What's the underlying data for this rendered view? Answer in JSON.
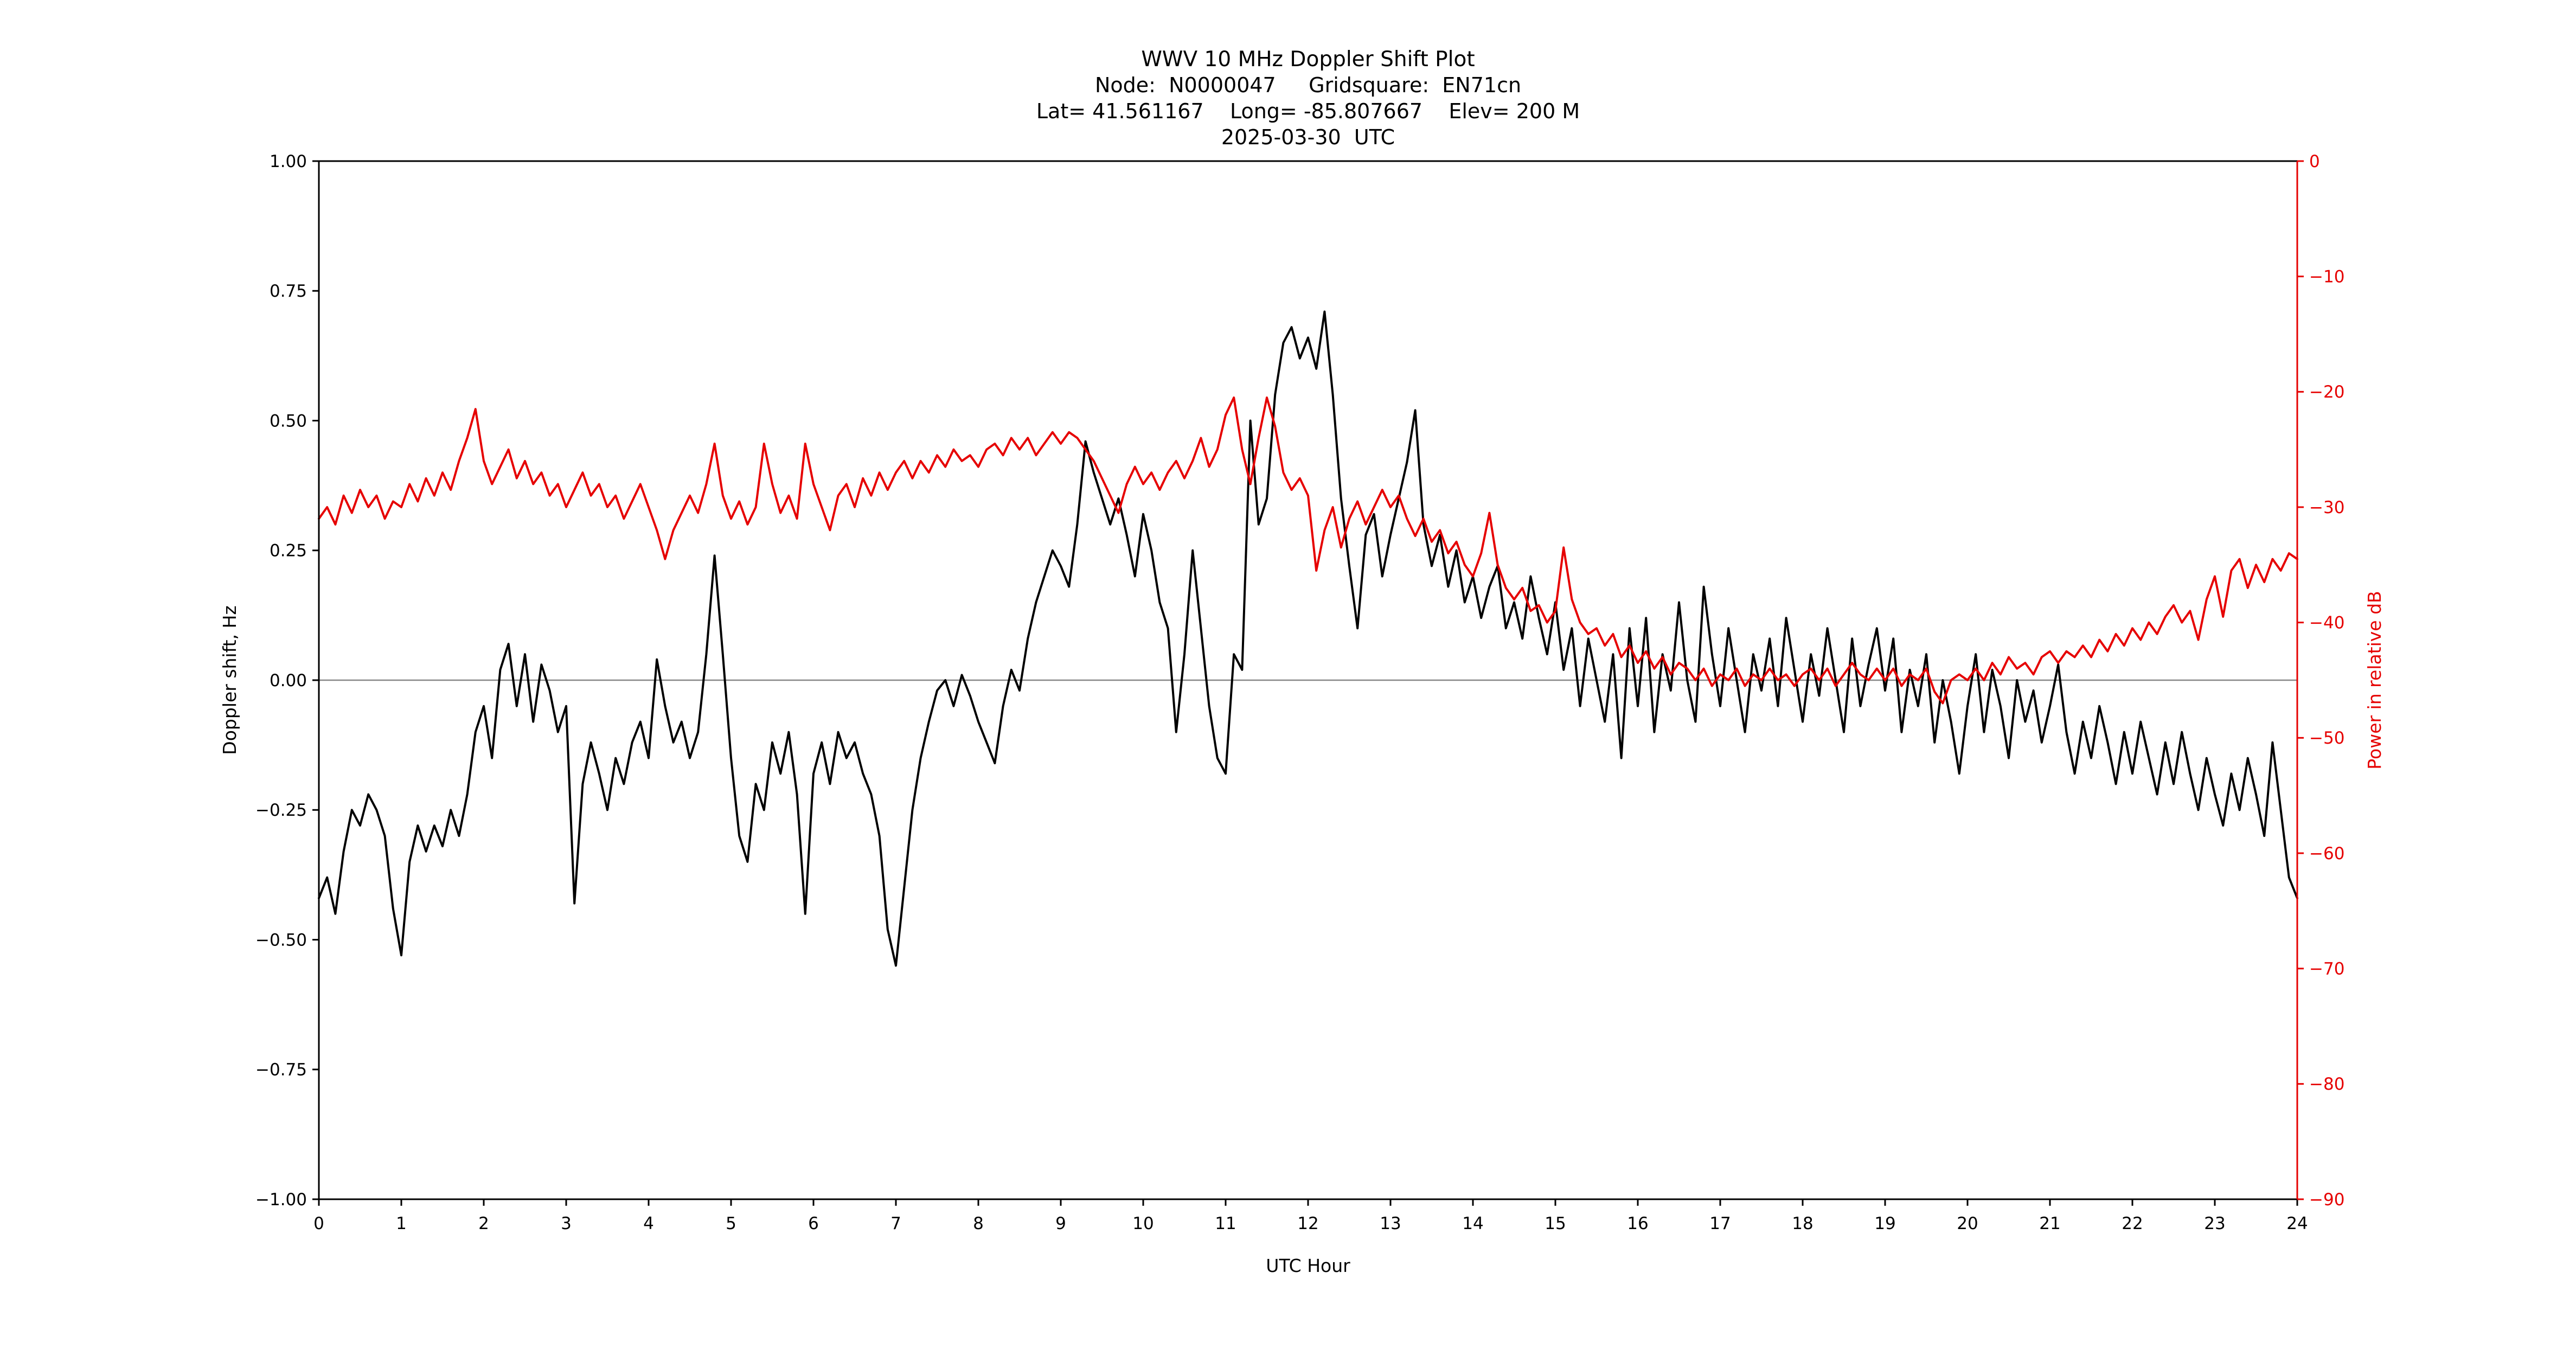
{
  "header": {
    "line1": "WWV 10 MHz Doppler Shift Plot",
    "line2": "Node:  N0000047     Gridsquare:  EN71cn",
    "line3": "Lat= 41.561167    Long= -85.807667    Elev= 200 M",
    "line4": "2025-03-30  UTC"
  },
  "axes": {
    "x_label": "UTC Hour",
    "y_left_label": "Doppler shift, Hz",
    "y_right_label": "Power in relative dB"
  },
  "colors": {
    "doppler": "#000000",
    "power": "#e60000",
    "zero_line": "#888888",
    "spine": "#000000"
  },
  "chart_data": {
    "type": "line",
    "title": "WWV 10 MHz Doppler Shift Plot",
    "subtitle_lines": [
      "Node:  N0000047     Gridsquare:  EN71cn",
      "Lat= 41.561167    Long= -85.807667    Elev= 200 M",
      "2025-03-30  UTC"
    ],
    "xlabel": "UTC Hour",
    "ylabel_left": "Doppler shift, Hz",
    "ylabel_right": "Power in relative dB",
    "xlim": [
      0,
      24
    ],
    "ylim_left": [
      -1.0,
      1.0
    ],
    "ylim_right": [
      -90,
      0
    ],
    "x_ticks": [
      0,
      1,
      2,
      3,
      4,
      5,
      6,
      7,
      8,
      9,
      10,
      11,
      12,
      13,
      14,
      15,
      16,
      17,
      18,
      19,
      20,
      21,
      22,
      23,
      24
    ],
    "y_left_ticks": [
      1.0,
      0.75,
      0.5,
      0.25,
      0.0,
      -0.25,
      -0.5,
      -0.75,
      -1.0
    ],
    "y_right_ticks": [
      0,
      -10,
      -20,
      -30,
      -40,
      -50,
      -60,
      -70,
      -80,
      -90
    ],
    "grid": false,
    "legend": "none",
    "zero_reference_line": 0.0,
    "x": [
      0,
      0.1,
      0.2,
      0.3,
      0.4,
      0.5,
      0.6,
      0.7,
      0.8,
      0.9,
      1,
      1.1,
      1.2,
      1.3,
      1.4,
      1.5,
      1.6,
      1.7,
      1.8,
      1.9,
      2,
      2.1,
      2.2,
      2.3,
      2.4,
      2.5,
      2.6,
      2.7,
      2.8,
      2.9,
      3,
      3.1,
      3.2,
      3.3,
      3.4,
      3.5,
      3.6,
      3.7,
      3.8,
      3.9,
      4,
      4.1,
      4.2,
      4.3,
      4.4,
      4.5,
      4.6,
      4.7,
      4.8,
      4.9,
      5,
      5.1,
      5.2,
      5.3,
      5.4,
      5.5,
      5.6,
      5.7,
      5.8,
      5.9,
      6,
      6.1,
      6.2,
      6.3,
      6.4,
      6.5,
      6.6,
      6.7,
      6.8,
      6.9,
      7,
      7.1,
      7.2,
      7.3,
      7.4,
      7.5,
      7.6,
      7.7,
      7.8,
      7.9,
      8,
      8.1,
      8.2,
      8.3,
      8.4,
      8.5,
      8.6,
      8.7,
      8.8,
      8.9,
      9,
      9.1,
      9.2,
      9.3,
      9.4,
      9.5,
      9.6,
      9.7,
      9.8,
      9.9,
      10,
      10.1,
      10.2,
      10.3,
      10.4,
      10.5,
      10.6,
      10.7,
      10.8,
      10.9,
      11,
      11.1,
      11.2,
      11.3,
      11.4,
      11.5,
      11.6,
      11.7,
      11.8,
      11.9,
      12,
      12.1,
      12.2,
      12.3,
      12.4,
      12.5,
      12.6,
      12.7,
      12.8,
      12.9,
      13,
      13.1,
      13.2,
      13.3,
      13.4,
      13.5,
      13.6,
      13.7,
      13.8,
      13.9,
      14,
      14.1,
      14.2,
      14.3,
      14.4,
      14.5,
      14.6,
      14.7,
      14.8,
      14.9,
      15,
      15.1,
      15.2,
      15.3,
      15.4,
      15.5,
      15.6,
      15.7,
      15.8,
      15.9,
      16,
      16.1,
      16.2,
      16.3,
      16.4,
      16.5,
      16.6,
      16.7,
      16.8,
      16.9,
      17,
      17.1,
      17.2,
      17.3,
      17.4,
      17.5,
      17.6,
      17.7,
      17.8,
      17.9,
      18,
      18.1,
      18.2,
      18.3,
      18.4,
      18.5,
      18.6,
      18.7,
      18.8,
      18.9,
      19,
      19.1,
      19.2,
      19.3,
      19.4,
      19.5,
      19.6,
      19.7,
      19.8,
      19.9,
      20,
      20.1,
      20.2,
      20.3,
      20.4,
      20.5,
      20.6,
      20.7,
      20.8,
      20.9,
      21,
      21.1,
      21.2,
      21.3,
      21.4,
      21.5,
      21.6,
      21.7,
      21.8,
      21.9,
      22,
      22.1,
      22.2,
      22.3,
      22.4,
      22.5,
      22.6,
      22.7,
      22.8,
      22.9,
      23,
      23.1,
      23.2,
      23.3,
      23.4,
      23.5,
      23.6,
      23.7,
      23.8,
      23.9,
      24
    ],
    "series": [
      {
        "name": "Doppler shift",
        "units": "Hz",
        "axis": "left",
        "color": "#000000",
        "values": [
          -0.42,
          -0.38,
          -0.45,
          -0.33,
          -0.25,
          -0.28,
          -0.22,
          -0.25,
          -0.3,
          -0.44,
          -0.53,
          -0.35,
          -0.28,
          -0.33,
          -0.28,
          -0.32,
          -0.25,
          -0.3,
          -0.22,
          -0.1,
          -0.05,
          -0.15,
          0.02,
          0.07,
          -0.05,
          0.05,
          -0.08,
          0.03,
          -0.02,
          -0.1,
          -0.05,
          -0.43,
          -0.2,
          -0.12,
          -0.18,
          -0.25,
          -0.15,
          -0.2,
          -0.12,
          -0.08,
          -0.15,
          0.04,
          -0.05,
          -0.12,
          -0.08,
          -0.15,
          -0.1,
          0.05,
          0.24,
          0.05,
          -0.15,
          -0.3,
          -0.35,
          -0.2,
          -0.25,
          -0.12,
          -0.18,
          -0.1,
          -0.22,
          -0.45,
          -0.18,
          -0.12,
          -0.2,
          -0.1,
          -0.15,
          -0.12,
          -0.18,
          -0.22,
          -0.3,
          -0.48,
          -0.55,
          -0.4,
          -0.25,
          -0.15,
          -0.08,
          -0.02,
          0.0,
          -0.05,
          0.01,
          -0.03,
          -0.08,
          -0.12,
          -0.16,
          -0.05,
          0.02,
          -0.02,
          0.08,
          0.15,
          0.2,
          0.25,
          0.22,
          0.18,
          0.3,
          0.46,
          0.4,
          0.35,
          0.3,
          0.35,
          0.28,
          0.2,
          0.32,
          0.25,
          0.15,
          0.1,
          -0.1,
          0.05,
          0.25,
          0.1,
          -0.05,
          -0.15,
          -0.18,
          0.05,
          0.02,
          0.5,
          0.3,
          0.35,
          0.55,
          0.65,
          0.68,
          0.62,
          0.66,
          0.6,
          0.71,
          0.55,
          0.35,
          0.22,
          0.1,
          0.28,
          0.32,
          0.2,
          0.28,
          0.35,
          0.42,
          0.52,
          0.3,
          0.22,
          0.28,
          0.18,
          0.25,
          0.15,
          0.2,
          0.12,
          0.18,
          0.22,
          0.1,
          0.15,
          0.08,
          0.2,
          0.12,
          0.05,
          0.15,
          0.02,
          0.1,
          -0.05,
          0.08,
          0.0,
          -0.08,
          0.05,
          -0.15,
          0.1,
          -0.05,
          0.12,
          -0.1,
          0.05,
          -0.02,
          0.15,
          0.0,
          -0.08,
          0.18,
          0.05,
          -0.05,
          0.1,
          0.0,
          -0.1,
          0.05,
          -0.02,
          0.08,
          -0.05,
          0.12,
          0.02,
          -0.08,
          0.05,
          -0.03,
          0.1,
          0.0,
          -0.1,
          0.08,
          -0.05,
          0.03,
          0.1,
          -0.02,
          0.08,
          -0.1,
          0.02,
          -0.05,
          0.05,
          -0.12,
          0.0,
          -0.08,
          -0.18,
          -0.05,
          0.05,
          -0.1,
          0.02,
          -0.05,
          -0.15,
          0.0,
          -0.08,
          -0.02,
          -0.12,
          -0.05,
          0.03,
          -0.1,
          -0.18,
          -0.08,
          -0.15,
          -0.05,
          -0.12,
          -0.2,
          -0.1,
          -0.18,
          -0.08,
          -0.15,
          -0.22,
          -0.12,
          -0.2,
          -0.1,
          -0.18,
          -0.25,
          -0.15,
          -0.22,
          -0.28,
          -0.18,
          -0.25,
          -0.15,
          -0.22,
          -0.3,
          -0.12,
          -0.25,
          -0.38,
          -0.42
        ]
      },
      {
        "name": "Power",
        "units": "relative dB",
        "axis": "right",
        "color": "#e60000",
        "values": [
          -31,
          -30,
          -31.5,
          -29,
          -30.5,
          -28.5,
          -30,
          -29,
          -31,
          -29.5,
          -30,
          -28,
          -29.5,
          -27.5,
          -29,
          -27,
          -28.5,
          -26,
          -24,
          -21.5,
          -26,
          -28,
          -26.5,
          -25,
          -27.5,
          -26,
          -28,
          -27,
          -29,
          -28,
          -30,
          -28.5,
          -27,
          -29,
          -28,
          -30,
          -29,
          -31,
          -29.5,
          -28,
          -30,
          -32,
          -34.5,
          -32,
          -30.5,
          -29,
          -30.5,
          -28,
          -24.5,
          -29,
          -31,
          -29.5,
          -31.5,
          -30,
          -24.5,
          -28,
          -30.5,
          -29,
          -31,
          -24.5,
          -28,
          -30,
          -32,
          -29,
          -28,
          -30,
          -27.5,
          -29,
          -27,
          -28.5,
          -27,
          -26,
          -27.5,
          -26,
          -27,
          -25.5,
          -26.5,
          -25,
          -26,
          -25.5,
          -26.5,
          -25,
          -24.5,
          -25.5,
          -24,
          -25,
          -24,
          -25.5,
          -24.5,
          -23.5,
          -24.5,
          -23.5,
          -24,
          -25,
          -26,
          -27.5,
          -29,
          -30.5,
          -28,
          -26.5,
          -28,
          -27,
          -28.5,
          -27,
          -26,
          -27.5,
          -26,
          -24,
          -26.5,
          -25,
          -22,
          -20.5,
          -25,
          -28,
          -24,
          -20.5,
          -23,
          -27,
          -28.5,
          -27.5,
          -29,
          -35.5,
          -32,
          -30,
          -33.5,
          -31,
          -29.5,
          -31.5,
          -30,
          -28.5,
          -30,
          -29,
          -31,
          -32.5,
          -31,
          -33,
          -32,
          -34,
          -33,
          -35,
          -36,
          -34,
          -30.5,
          -35,
          -37,
          -38,
          -37,
          -39,
          -38.5,
          -40,
          -39,
          -33.5,
          -38,
          -40,
          -41,
          -40.5,
          -42,
          -41,
          -43,
          -42,
          -43.5,
          -42.5,
          -44,
          -43,
          -44.5,
          -43.5,
          -44,
          -45,
          -44,
          -45.5,
          -44.5,
          -45,
          -44,
          -45.5,
          -44.5,
          -45,
          -44,
          -45,
          -44.5,
          -45.5,
          -44.5,
          -44,
          -45,
          -44,
          -45.5,
          -44.5,
          -43.5,
          -44.5,
          -45,
          -44,
          -45,
          -44,
          -45.5,
          -44.5,
          -45,
          -44,
          -46,
          -47,
          -45,
          -44.5,
          -45,
          -44,
          -45,
          -43.5,
          -44.5,
          -43,
          -44,
          -43.5,
          -44.5,
          -43,
          -42.5,
          -43.5,
          -42.5,
          -43,
          -42,
          -43,
          -41.5,
          -42.5,
          -41,
          -42,
          -40.5,
          -41.5,
          -40,
          -41,
          -39.5,
          -38.5,
          -40,
          -39,
          -41.5,
          -38,
          -36,
          -39.5,
          -35.5,
          -34.5,
          -37,
          -35,
          -36.5,
          -34.5,
          -35.5,
          -34,
          -34.5
        ]
      }
    ]
  }
}
